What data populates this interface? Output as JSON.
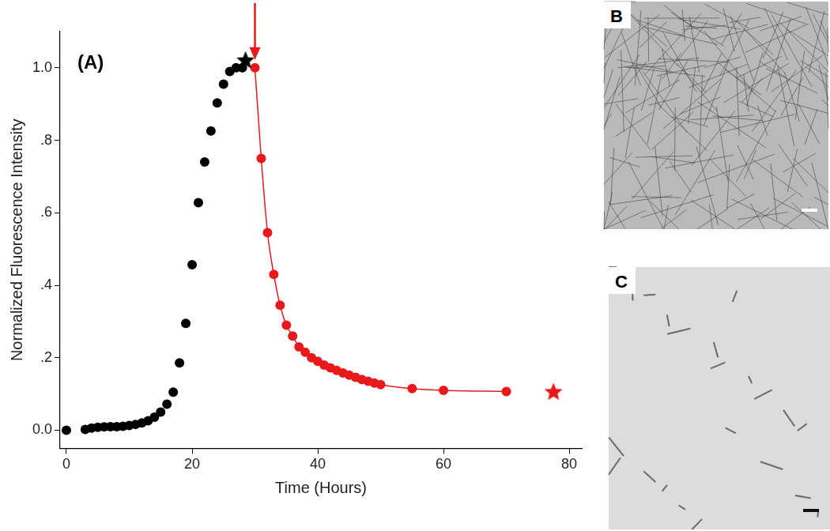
{
  "chart_data": {
    "type": "scatter",
    "x_label": "Time (Hours)",
    "y_label": "Normalized Fluorescence Intensity",
    "annotations": [
      {
        "text": "(A)"
      }
    ],
    "xlim": [
      -1,
      82
    ],
    "xticks": [
      0,
      20,
      40,
      60,
      80
    ],
    "ylim": [
      -0.05,
      1.1
    ],
    "yticks": [
      {
        "value": 0,
        "label": "0.0"
      },
      {
        "value": 0.2,
        "label": ".2"
      },
      {
        "value": 0.4,
        "label": ".4"
      },
      {
        "value": 0.6,
        "label": ".6"
      },
      {
        "value": 0.8,
        "label": ".8"
      },
      {
        "value": 1.0,
        "label": "1.0"
      }
    ],
    "grid": false,
    "series": [
      {
        "color": "#000000",
        "marker": "circle",
        "line_style": "none",
        "x": [
          0,
          3,
          4,
          5,
          6,
          7,
          8,
          9,
          10,
          11,
          12,
          13,
          14,
          15,
          16,
          17,
          18,
          19,
          20,
          21,
          22,
          23,
          24,
          25,
          26,
          27,
          28
        ],
        "values": [
          0,
          0.002,
          0.006,
          0.008,
          0.009,
          0.01,
          0.01,
          0.011,
          0.013,
          0.016,
          0.02,
          0.026,
          0.036,
          0.05,
          0.072,
          0.105,
          0.186,
          0.295,
          0.457,
          0.628,
          0.74,
          0.826,
          0.903,
          0.955,
          0.99,
          1.0,
          1.0
        ]
      },
      {
        "color": "#000000",
        "marker": "star",
        "line_style": "none",
        "x": [
          28.5
        ],
        "values": [
          1.02
        ]
      },
      {
        "color": "#e8191c",
        "marker": "circle",
        "line_style": "solid",
        "x": [
          30,
          31,
          32,
          33,
          34,
          35,
          36,
          37,
          38,
          39,
          40,
          41,
          42,
          43,
          44,
          45,
          46,
          47,
          48,
          49,
          50,
          55,
          60,
          70
        ],
        "values": [
          1.0,
          0.75,
          0.545,
          0.43,
          0.345,
          0.29,
          0.26,
          0.23,
          0.215,
          0.2,
          0.19,
          0.18,
          0.172,
          0.165,
          0.158,
          0.152,
          0.146,
          0.14,
          0.135,
          0.13,
          0.126,
          0.115,
          0.11,
          0.107
        ]
      },
      {
        "color": "#e8191c",
        "marker": "star",
        "line_style": "none",
        "x": [
          77.5
        ],
        "values": [
          0.105
        ]
      }
    ],
    "legend": false
  },
  "images": [
    {
      "label": "B"
    },
    {
      "label": "C"
    }
  ]
}
